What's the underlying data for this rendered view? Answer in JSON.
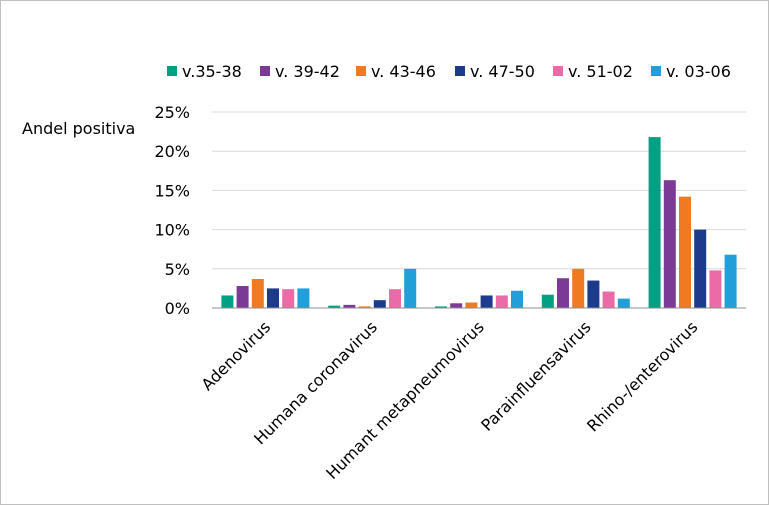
{
  "chart_data": {
    "type": "bar",
    "title": "",
    "ylabel": "Andel positiva",
    "xlabel": "",
    "ylim": [
      0,
      25
    ],
    "yticks": [
      0,
      5,
      10,
      15,
      20,
      25
    ],
    "ytick_labels": [
      "0%",
      "5%",
      "10%",
      "15%",
      "20%",
      "25%"
    ],
    "grid": true,
    "legend_position": "top",
    "categories": [
      "Adenovirus",
      "Humana coronavirus",
      "Humant metapneumovirus",
      "Parainfluensavirus",
      "Rhino-/enterovirus"
    ],
    "series": [
      {
        "name": "v.35-38",
        "color": "#00a082",
        "values": [
          1.6,
          0.3,
          0.2,
          1.7,
          21.8
        ]
      },
      {
        "name": "v. 39-42",
        "color": "#7b3a96",
        "values": [
          2.8,
          0.4,
          0.6,
          3.8,
          16.3
        ]
      },
      {
        "name": "v. 43-46",
        "color": "#f07a22",
        "values": [
          3.7,
          0.2,
          0.7,
          5.0,
          14.2
        ]
      },
      {
        "name": "v. 47-50",
        "color": "#1c3b8c",
        "values": [
          2.5,
          1.0,
          1.6,
          3.5,
          10.0
        ]
      },
      {
        "name": "v. 51-02",
        "color": "#ea6ba5",
        "values": [
          2.4,
          2.4,
          1.6,
          2.1,
          4.8
        ]
      },
      {
        "name": "v. 03-06",
        "color": "#209fd9",
        "values": [
          2.5,
          5.0,
          2.2,
          1.2,
          6.8
        ]
      }
    ]
  }
}
